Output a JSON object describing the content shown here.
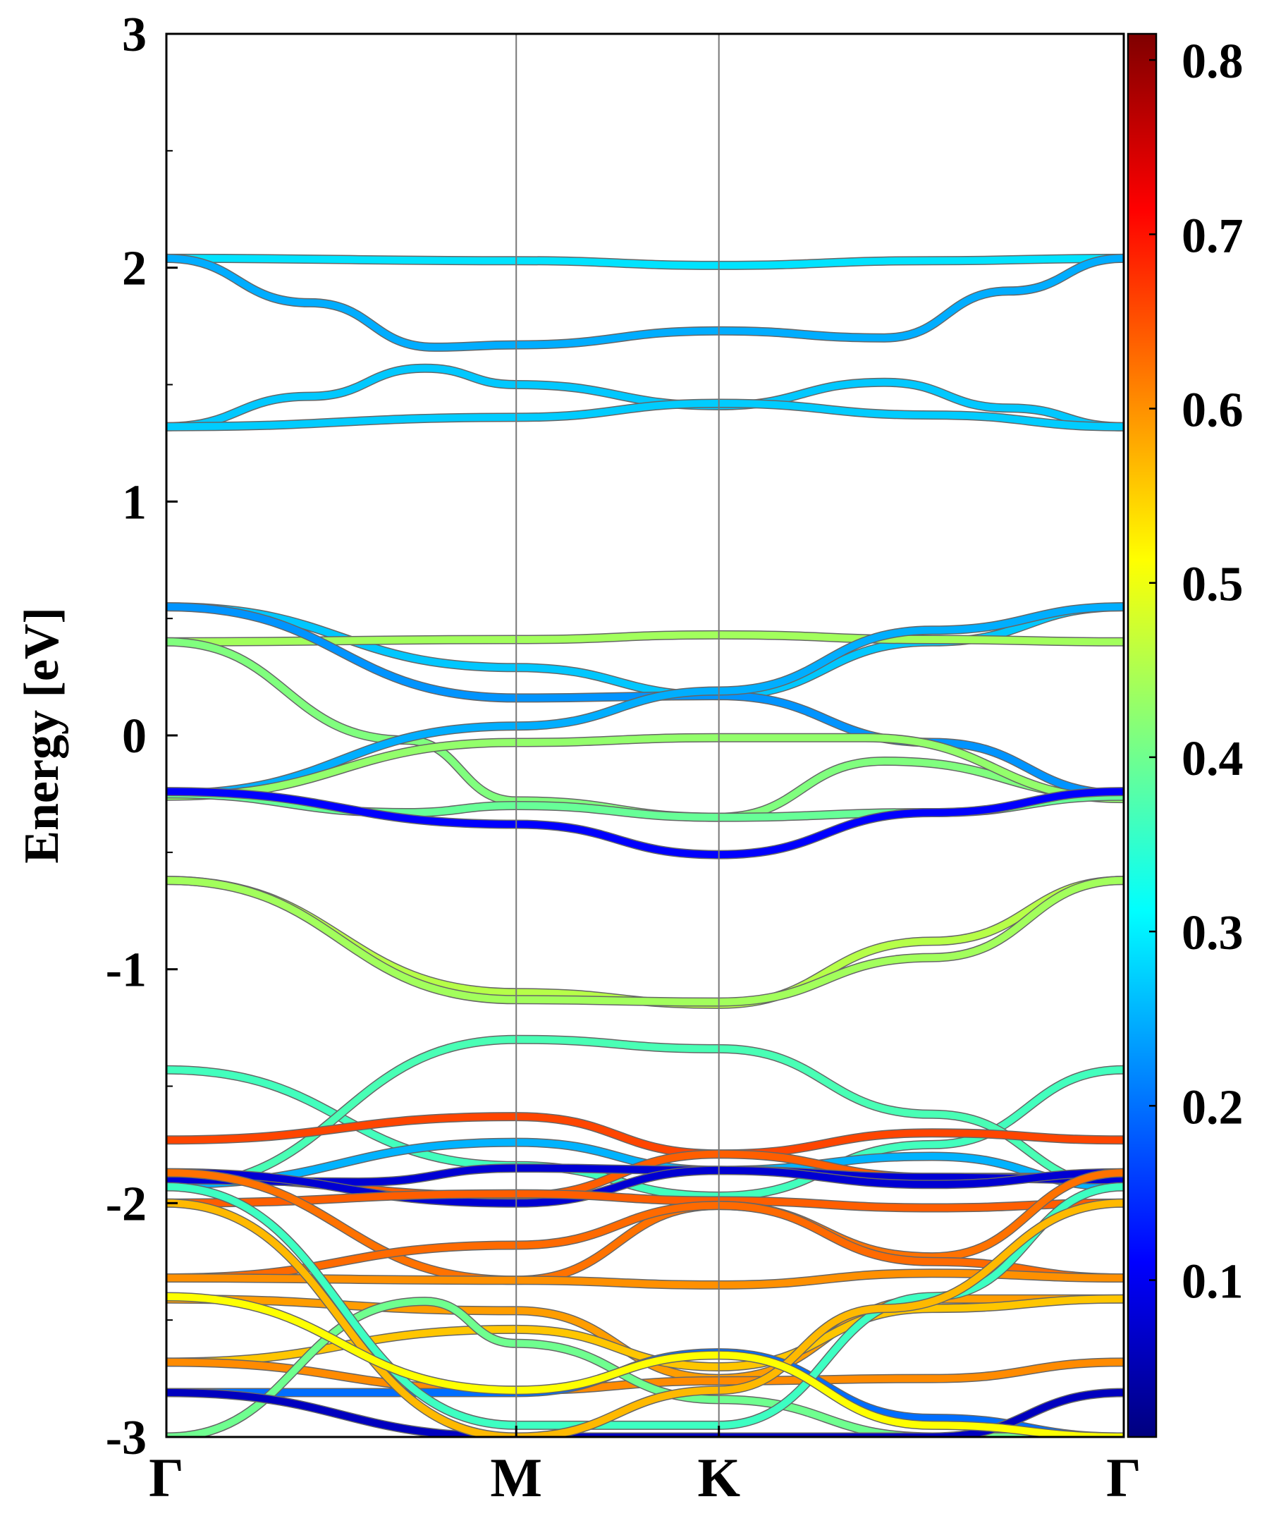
{
  "chart_data": {
    "type": "line",
    "title": "",
    "xlabel": "",
    "ylabel": "Energy [eV]",
    "ylim": [
      -3,
      3
    ],
    "grid": false,
    "legend": "none",
    "kpath": [
      {
        "label": "Γ",
        "k": 0
      },
      {
        "label": "M",
        "k": 0.3654
      },
      {
        "label": "K",
        "k": 0.5771
      },
      {
        "label": "Γ",
        "k": 1.0
      }
    ],
    "yticks": [
      3,
      2,
      1,
      0,
      -1,
      -2,
      -3
    ],
    "yticklabels": [
      "3",
      "2",
      "1",
      "0",
      "-1",
      "-2",
      "-3"
    ],
    "colorbar": {
      "range": [
        0.01,
        0.815
      ],
      "ticks": [
        0.1,
        0.2,
        0.3,
        0.4,
        0.5,
        0.6,
        0.7,
        0.8
      ],
      "ticklabels": [
        "0.1",
        "0.2",
        "0.3",
        "0.4",
        "0.5",
        "0.6",
        "0.7",
        "0.8"
      ],
      "colormap": "jet",
      "stops": [
        "#00007f",
        "#0000ff",
        "#007fff",
        "#00ffff",
        "#7fff7f",
        "#ffff00",
        "#ff7f00",
        "#ff0000",
        "#7f0000"
      ]
    },
    "series": [
      {
        "k": [
          0,
          0.3654,
          0.5771,
          0.8,
          1
        ],
        "energy": [
          2.04,
          2.03,
          2.01,
          2.03,
          2.04
        ],
        "weight": [
          0.28,
          0.29,
          0.31,
          0.29,
          0.28
        ]
      },
      {
        "k": [
          0,
          0.15,
          0.28,
          0.3654,
          0.5771,
          0.75,
          0.88,
          1
        ],
        "energy": [
          2.04,
          1.85,
          1.66,
          1.67,
          1.73,
          1.7,
          1.9,
          2.04
        ],
        "weight": [
          0.27,
          0.24,
          0.23,
          0.23,
          0.24,
          0.24,
          0.26,
          0.27
        ]
      },
      {
        "k": [
          0,
          0.15,
          0.27,
          0.3654,
          0.5771,
          0.75,
          0.88,
          1
        ],
        "energy": [
          1.32,
          1.45,
          1.57,
          1.5,
          1.41,
          1.51,
          1.4,
          1.32
        ],
        "weight": [
          0.28,
          0.28,
          0.27,
          0.25,
          0.24,
          0.27,
          0.28,
          0.28
        ]
      },
      {
        "k": [
          0,
          0.3654,
          0.5771,
          0.8,
          1
        ],
        "energy": [
          1.32,
          1.36,
          1.42,
          1.37,
          1.32
        ],
        "weight": [
          0.28,
          0.27,
          0.26,
          0.27,
          0.28
        ]
      },
      {
        "k": [
          0,
          0.3654,
          0.5771,
          0.8,
          1
        ],
        "energy": [
          0.55,
          0.29,
          0.17,
          0.4,
          0.55
        ],
        "weight": [
          0.3,
          0.24,
          0.22,
          0.28,
          0.3
        ]
      },
      {
        "k": [
          0,
          0.3654,
          0.5771,
          0.8,
          1
        ],
        "energy": [
          0.4,
          0.41,
          0.43,
          0.41,
          0.4
        ],
        "weight": [
          0.44,
          0.44,
          0.44,
          0.44,
          0.44
        ]
      },
      {
        "k": [
          0,
          0.25,
          0.3654,
          0.5771,
          0.75,
          1
        ],
        "energy": [
          0.4,
          -0.02,
          -0.28,
          -0.35,
          -0.11,
          -0.26
        ],
        "weight": [
          0.43,
          0.42,
          0.4,
          0.4,
          0.41,
          0.42
        ]
      },
      {
        "k": [
          0,
          0.3654,
          0.5771,
          0.8,
          1
        ],
        "energy": [
          0.55,
          0.16,
          0.17,
          -0.03,
          -0.25
        ],
        "weight": [
          0.3,
          0.22,
          0.22,
          0.2,
          0.2
        ]
      },
      {
        "k": [
          0,
          0.3654,
          0.5771,
          0.8,
          1
        ],
        "energy": [
          -0.25,
          0.04,
          0.19,
          0.45,
          0.55
        ],
        "weight": [
          0.22,
          0.22,
          0.22,
          0.28,
          0.3
        ]
      },
      {
        "k": [
          0,
          0.3654,
          0.5771,
          0.73,
          1
        ],
        "energy": [
          -0.26,
          -0.03,
          -0.01,
          -0.01,
          -0.27
        ],
        "weight": [
          0.42,
          0.43,
          0.44,
          0.43,
          0.42
        ]
      },
      {
        "k": [
          0,
          0.25,
          0.3654,
          0.5771,
          0.8,
          1
        ],
        "energy": [
          -0.25,
          -0.33,
          -0.3,
          -0.35,
          -0.33,
          -0.26
        ],
        "weight": [
          0.4,
          0.4,
          0.38,
          0.38,
          0.4,
          0.4
        ]
      },
      {
        "k": [
          0,
          0.3654,
          0.5771,
          0.8,
          1
        ],
        "energy": [
          -0.24,
          -0.38,
          -0.51,
          -0.33,
          -0.24
        ],
        "weight": [
          0.12,
          0.1,
          0.1,
          0.11,
          0.12
        ]
      },
      {
        "k": [
          0,
          0.3654,
          0.5771,
          0.8,
          1
        ],
        "energy": [
          -0.62,
          -1.1,
          -1.15,
          -0.88,
          -0.62
        ],
        "weight": [
          0.5,
          0.42,
          0.4,
          0.46,
          0.5
        ]
      },
      {
        "k": [
          0,
          0.3654,
          0.5771,
          0.8,
          1
        ],
        "energy": [
          -0.62,
          -1.13,
          -1.14,
          -0.95,
          -0.62
        ],
        "weight": [
          0.48,
          0.4,
          0.4,
          0.44,
          0.48
        ]
      },
      {
        "k": [
          0,
          0.3654,
          0.5771,
          0.8,
          1
        ],
        "energy": [
          -1.43,
          -1.84,
          -1.97,
          -1.75,
          -1.43
        ],
        "weight": [
          0.38,
          0.34,
          0.36,
          0.36,
          0.38
        ]
      },
      {
        "k": [
          0,
          0.3654,
          0.5771,
          0.8,
          1
        ],
        "energy": [
          -1.93,
          -1.3,
          -1.34,
          -1.62,
          -1.93
        ],
        "weight": [
          0.36,
          0.38,
          0.38,
          0.37,
          0.36
        ]
      },
      {
        "k": [
          0,
          0.3654,
          0.5771,
          0.8,
          1
        ],
        "energy": [
          -1.73,
          -1.63,
          -1.79,
          -1.7,
          -1.73
        ],
        "weight": [
          0.66,
          0.66,
          0.66,
          0.66,
          0.66
        ]
      },
      {
        "k": [
          0,
          0.3654,
          0.5771,
          0.8,
          1
        ],
        "energy": [
          -1.92,
          -1.74,
          -1.86,
          -1.8,
          -1.93
        ],
        "weight": [
          0.26,
          0.26,
          0.24,
          0.24,
          0.26
        ]
      },
      {
        "k": [
          0,
          0.3654,
          0.5771,
          0.8,
          1
        ],
        "energy": [
          -1.89,
          -1.97,
          -1.79,
          -1.89,
          -1.89
        ],
        "weight": [
          0.64,
          0.64,
          0.64,
          0.64,
          0.64
        ]
      },
      {
        "k": [
          0,
          0.2,
          0.3654,
          0.5771,
          0.8,
          1
        ],
        "energy": [
          -1.9,
          -1.91,
          -1.85,
          -1.86,
          -1.89,
          -1.9
        ],
        "weight": [
          0.08,
          0.08,
          0.07,
          0.07,
          0.08,
          0.08
        ]
      },
      {
        "k": [
          0,
          0.3654,
          0.5771,
          0.8,
          1
        ],
        "energy": [
          -1.87,
          -2.0,
          -1.86,
          -1.92,
          -1.87
        ],
        "weight": [
          0.08,
          0.07,
          0.07,
          0.08,
          0.08
        ]
      },
      {
        "k": [
          0,
          0.3654,
          0.5771,
          0.8,
          1
        ],
        "energy": [
          -2.0,
          -1.96,
          -1.99,
          -2.02,
          -2.0
        ],
        "weight": [
          0.64,
          0.64,
          0.64,
          0.64,
          0.64
        ]
      },
      {
        "k": [
          0,
          0.3654,
          0.5771,
          0.8,
          1
        ],
        "energy": [
          -1.87,
          -2.33,
          -2.01,
          -2.23,
          -1.87
        ],
        "weight": [
          0.63,
          0.62,
          0.62,
          0.62,
          0.63
        ]
      },
      {
        "k": [
          0,
          0.3654,
          0.5771,
          0.8,
          1
        ],
        "energy": [
          -2.32,
          -2.18,
          -2.01,
          -2.25,
          -2.32
        ],
        "weight": [
          0.63,
          0.63,
          0.63,
          0.63,
          0.63
        ]
      },
      {
        "k": [
          0,
          0.3654,
          0.5771,
          0.8,
          1
        ],
        "energy": [
          -2.32,
          -2.33,
          -2.35,
          -2.3,
          -2.32
        ],
        "weight": [
          0.6,
          0.6,
          0.6,
          0.6,
          0.6
        ]
      },
      {
        "k": [
          0,
          0.3654,
          0.5771,
          0.8,
          1
        ],
        "energy": [
          -2.41,
          -2.46,
          -2.75,
          -2.41,
          -2.41
        ],
        "weight": [
          0.59,
          0.59,
          0.59,
          0.59,
          0.59
        ]
      },
      {
        "k": [
          0,
          0.3654,
          0.5771,
          0.8,
          1
        ],
        "energy": [
          -2.68,
          -2.54,
          -2.7,
          -2.45,
          -2.41
        ],
        "weight": [
          0.58,
          0.56,
          0.52,
          0.55,
          0.58
        ]
      },
      {
        "k": [
          0,
          0.3654,
          0.5771,
          0.8,
          1
        ],
        "energy": [
          -2.68,
          -2.8,
          -2.76,
          -2.75,
          -2.68
        ],
        "weight": [
          0.61,
          0.6,
          0.6,
          0.6,
          0.61
        ]
      },
      {
        "k": [
          0,
          0.3654,
          0.5771,
          0.8,
          1
        ],
        "energy": [
          -2.81,
          -2.81,
          -2.64,
          -2.92,
          -3.0
        ],
        "weight": [
          0.08,
          0.25,
          0.28,
          0.3,
          0.08
        ]
      },
      {
        "k": [
          0,
          0.27,
          0.3654,
          0.5771,
          0.8,
          1
        ],
        "energy": [
          -3.0,
          -2.42,
          -2.6,
          -2.84,
          -3.0,
          -3.0
        ],
        "weight": [
          0.4,
          0.4,
          0.4,
          0.4,
          0.4,
          0.4
        ]
      },
      {
        "k": [
          0,
          0.3654,
          0.5771,
          0.8,
          1
        ],
        "energy": [
          -2.81,
          -3.0,
          -3.0,
          -3.0,
          -2.81
        ],
        "weight": [
          0.06,
          0.06,
          0.06,
          0.06,
          0.06
        ]
      },
      {
        "k": [
          0,
          0.3654,
          0.5771,
          0.8,
          1
        ],
        "energy": [
          -1.93,
          -2.95,
          -2.95,
          -2.4,
          -1.93
        ],
        "weight": [
          0.36,
          0.36,
          0.36,
          0.36,
          0.36
        ]
      },
      {
        "k": [
          0,
          0.3654,
          0.5771,
          0.75,
          1
        ],
        "energy": [
          -2.0,
          -3.0,
          -2.8,
          -2.45,
          -2.0
        ],
        "weight": [
          0.58,
          0.56,
          0.56,
          0.56,
          0.58
        ]
      },
      {
        "k": [
          0,
          0.3654,
          0.5771,
          0.8,
          1
        ],
        "energy": [
          -2.4,
          -2.8,
          -2.65,
          -2.95,
          -3.0
        ],
        "weight": [
          0.52,
          0.5,
          0.5,
          0.52,
          0.52
        ]
      }
    ]
  }
}
